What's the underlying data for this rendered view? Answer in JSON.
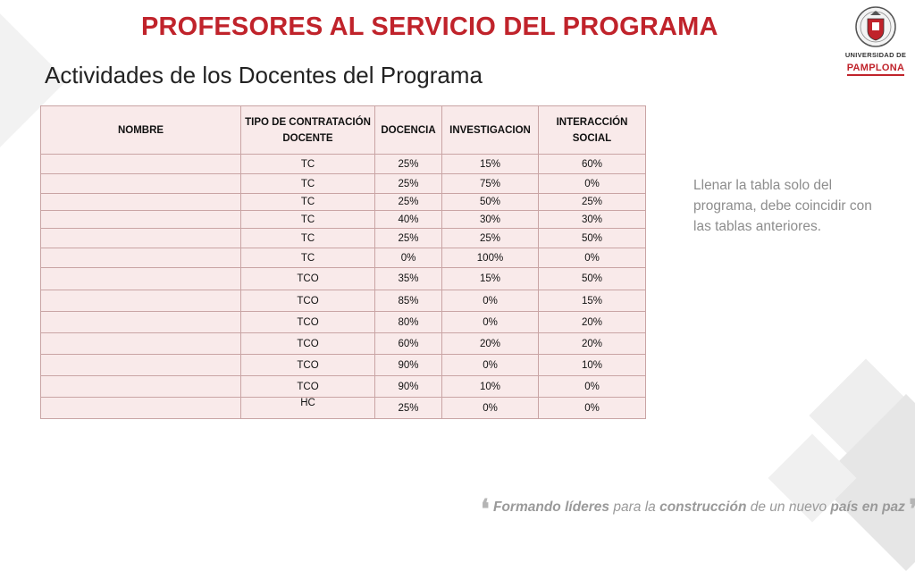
{
  "header": {
    "title": "PROFESORES AL SERVICIO DEL PROGRAMA",
    "subtitle": "Actividades de los Docentes del Programa"
  },
  "logo": {
    "line1": "UNIVERSIDAD DE",
    "line2": "PAMPLONA",
    "seal_icon": "university-seal-icon",
    "accent_color": "#c0232b"
  },
  "table": {
    "headers": [
      "NOMBRE",
      "TIPO DE CONTRATACIÓN DOCENTE",
      "DOCENCIA",
      "INVESTIGACION",
      "INTERACCIÓN SOCIAL"
    ],
    "rows": [
      [
        "",
        "TC",
        "25%",
        "15%",
        "60%"
      ],
      [
        "",
        "TC",
        "25%",
        "75%",
        "0%"
      ],
      [
        "",
        "TC",
        "25%",
        "50%",
        "25%"
      ],
      [
        "",
        "TC",
        "40%",
        "30%",
        "30%"
      ],
      [
        "",
        "TC",
        "25%",
        "25%",
        "50%"
      ],
      [
        "",
        "TC",
        "0%",
        "100%",
        "0%"
      ],
      [
        "",
        "TCO",
        "35%",
        "15%",
        "50%"
      ],
      [
        "",
        "TCO",
        "85%",
        "0%",
        "15%"
      ],
      [
        "",
        "TCO",
        "80%",
        "0%",
        "20%"
      ],
      [
        "",
        "TCO",
        "60%",
        "20%",
        "20%"
      ],
      [
        "",
        "TCO",
        "90%",
        "0%",
        "10%"
      ],
      [
        "",
        "TCO",
        "90%",
        "10%",
        "0%"
      ],
      [
        "",
        "HC",
        "25%",
        "0%",
        "0%"
      ]
    ]
  },
  "note": {
    "text": "Llenar la tabla solo del programa, debe coincidir  con las tablas anteriores."
  },
  "footer": {
    "open_quote": "❛",
    "w1": "Formando",
    "w2": "líderes",
    "w3": "para la",
    "w4": "construcción",
    "w5": "de un nuevo",
    "w6": "país en paz",
    "close_quote": "❜"
  }
}
